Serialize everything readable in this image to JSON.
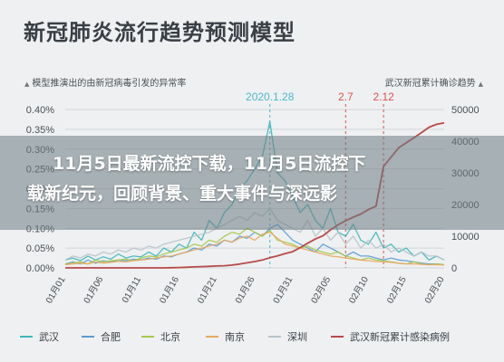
{
  "header": {
    "title": "新冠肺炎流行趋势预测模型",
    "subtitle_left": "模型推演出的由新冠病毒引发的异常率",
    "subtitle_right": "武汉新冠累计确诊趋势"
  },
  "overlay": {
    "line1": "11月5日最新流控下载，11月5日流控下",
    "line2": "载新纪元，回顾背景、重大事件与深远影"
  },
  "chart_data": {
    "type": "line",
    "x": [
      "01月01",
      "01月02",
      "01月03",
      "01月04",
      "01月05",
      "01月06",
      "01月07",
      "01月08",
      "01月09",
      "01月10",
      "01月11",
      "01月12",
      "01月13",
      "01月14",
      "01月15",
      "01月16",
      "01月17",
      "01月18",
      "01月19",
      "01月20",
      "01月21",
      "01月22",
      "01月23",
      "01月24",
      "01月25",
      "01月26",
      "01月27",
      "01月28",
      "01月29",
      "01月30",
      "01月31",
      "02月01",
      "02月02",
      "02月03",
      "02月04",
      "02月05",
      "02月06",
      "02月07",
      "02月08",
      "02月09",
      "02月10",
      "02月11",
      "02月12",
      "02月13",
      "02月14",
      "02月15",
      "02月16",
      "02月17",
      "02月18",
      "02月19",
      "02月20"
    ],
    "x_tick_labels": [
      "01月01",
      "01月06",
      "01月11",
      "01月16",
      "01月21",
      "01月26",
      "01月31",
      "02月05",
      "02月10",
      "02月15",
      "02月20"
    ],
    "ylim_left": [
      0,
      0.4
    ],
    "yticks_left": [
      "0.00%",
      "0.05%",
      "0.10%",
      "0.15%",
      "0.20%",
      "0.25%",
      "0.30%",
      "0.35%",
      "0.40%"
    ],
    "ylim_right": [
      0,
      50000
    ],
    "yticks_right": [
      "0",
      "10000",
      "20000",
      "30000",
      "40000",
      "50000"
    ],
    "annotations": [
      {
        "label": "2020.1.28",
        "x_index": 27,
        "color": "#4fb8c8"
      },
      {
        "label": "2.7",
        "x_index": 37,
        "color": "#d9534f"
      },
      {
        "label": "2.12",
        "x_index": 42,
        "color": "#d9534f"
      }
    ],
    "series": [
      {
        "name": "武汉",
        "axis": "left",
        "color": "#3fb6b8",
        "values": [
          0.02,
          0.025,
          0.018,
          0.03,
          0.02,
          0.028,
          0.022,
          0.035,
          0.025,
          0.03,
          0.028,
          0.04,
          0.03,
          0.05,
          0.04,
          0.06,
          0.05,
          0.09,
          0.07,
          0.12,
          0.1,
          0.14,
          0.16,
          0.2,
          0.22,
          0.25,
          0.28,
          0.37,
          0.24,
          0.22,
          0.18,
          0.14,
          0.16,
          0.12,
          0.1,
          0.15,
          0.09,
          0.08,
          0.11,
          0.07,
          0.06,
          0.09,
          0.05,
          0.06,
          0.04,
          0.05,
          0.03,
          0.04,
          0.02,
          0.03,
          0.02
        ]
      },
      {
        "name": "合肥",
        "axis": "left",
        "color": "#5b9bd5",
        "values": [
          0.01,
          0.015,
          0.01,
          0.02,
          0.012,
          0.018,
          0.015,
          0.02,
          0.018,
          0.022,
          0.02,
          0.025,
          0.022,
          0.03,
          0.028,
          0.035,
          0.04,
          0.05,
          0.045,
          0.06,
          0.055,
          0.07,
          0.065,
          0.08,
          0.075,
          0.09,
          0.08,
          0.1,
          0.11,
          0.09,
          0.07,
          0.06,
          0.05,
          0.04,
          0.06,
          0.05,
          0.04,
          0.03,
          0.04,
          0.03,
          0.03,
          0.025,
          0.02,
          0.025,
          0.02,
          0.018,
          0.015,
          0.012,
          0.01,
          0.01,
          0.008
        ]
      },
      {
        "name": "北京",
        "axis": "left",
        "color": "#a5c94a",
        "values": [
          0.01,
          0.012,
          0.015,
          0.01,
          0.02,
          0.015,
          0.018,
          0.02,
          0.022,
          0.018,
          0.025,
          0.03,
          0.028,
          0.035,
          0.04,
          0.045,
          0.05,
          0.06,
          0.055,
          0.07,
          0.065,
          0.08,
          0.09,
          0.085,
          0.1,
          0.09,
          0.08,
          0.095,
          0.07,
          0.065,
          0.06,
          0.05,
          0.055,
          0.045,
          0.04,
          0.035,
          0.04,
          0.03,
          0.025,
          0.02,
          0.025,
          0.02,
          0.018,
          0.015,
          0.012,
          0.01,
          0.015,
          0.01,
          0.008,
          0.01,
          0.008
        ]
      },
      {
        "name": "南京",
        "axis": "left",
        "color": "#e8a963",
        "values": [
          0.008,
          0.01,
          0.012,
          0.01,
          0.015,
          0.012,
          0.014,
          0.016,
          0.015,
          0.018,
          0.02,
          0.022,
          0.025,
          0.028,
          0.03,
          0.035,
          0.04,
          0.045,
          0.05,
          0.055,
          0.06,
          0.07,
          0.065,
          0.075,
          0.08,
          0.07,
          0.085,
          0.09,
          0.075,
          0.06,
          0.055,
          0.05,
          0.045,
          0.04,
          0.035,
          0.03,
          0.028,
          0.025,
          0.022,
          0.02,
          0.018,
          0.016,
          0.015,
          0.014,
          0.012,
          0.01,
          0.01,
          0.009,
          0.008,
          0.008,
          0.007
        ]
      },
      {
        "name": "深圳",
        "axis": "left",
        "color": "#b8c3c9",
        "values": [
          0.02,
          0.03,
          0.025,
          0.035,
          0.03,
          0.04,
          0.035,
          0.045,
          0.04,
          0.05,
          0.045,
          0.055,
          0.05,
          0.06,
          0.065,
          0.07,
          0.075,
          0.08,
          0.085,
          0.09,
          0.1,
          0.11,
          0.12,
          0.13,
          0.12,
          0.14,
          0.13,
          0.15,
          0.12,
          0.11,
          0.1,
          0.09,
          0.12,
          0.08,
          0.1,
          0.07,
          0.09,
          0.06,
          0.08,
          0.05,
          0.07,
          0.05,
          0.06,
          0.04,
          0.05,
          0.04,
          0.03,
          0.04,
          0.03,
          0.03,
          0.02
        ]
      },
      {
        "name": "武汉新冠累计感染病例",
        "axis": "right",
        "color": "#b84a4a",
        "values": [
          0,
          0,
          0,
          0,
          0,
          0,
          0,
          0,
          0,
          0,
          0,
          0,
          0,
          0,
          50,
          100,
          200,
          300,
          400,
          500,
          600,
          700,
          900,
          1200,
          1600,
          2000,
          2500,
          3200,
          3800,
          4500,
          5100,
          6400,
          7800,
          9100,
          10100,
          12000,
          13600,
          14900,
          16000,
          17000,
          18400,
          19500,
          32000,
          35000,
          37900,
          39500,
          41100,
          42700,
          44400,
          45300,
          45800
        ]
      }
    ]
  }
}
